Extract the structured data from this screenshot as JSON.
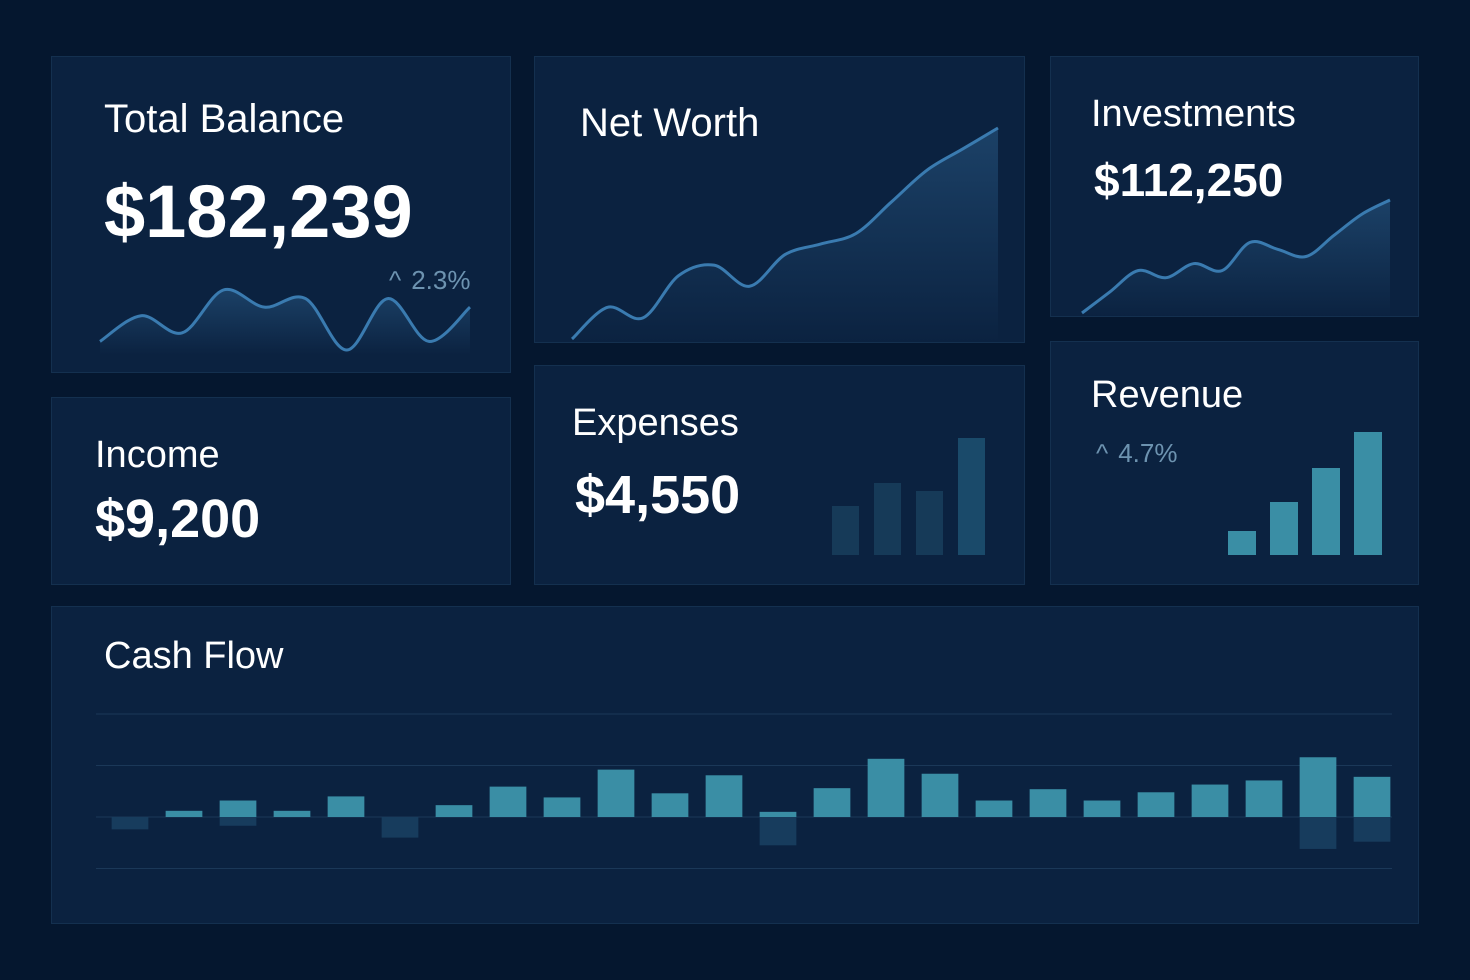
{
  "colors": {
    "background": "#05172f",
    "card": "#0b2240",
    "line": "#3a7bb0",
    "bar_positive": "#3a8ea5",
    "bar_negative": "#173c5d",
    "muted_text": "#6d93b0"
  },
  "total_balance": {
    "title": "Total Balance",
    "value": "$182,239",
    "change_icon": "chevron-up-icon",
    "change": "2.3%"
  },
  "net_worth": {
    "title": "Net Worth"
  },
  "investments": {
    "title": "Investments",
    "value": "$112,250"
  },
  "income": {
    "title": "Income",
    "value": "$9,200"
  },
  "expenses": {
    "title": "Expenses",
    "value": "$4,550"
  },
  "revenue": {
    "title": "Revenue",
    "change_icon": "chevron-up-icon",
    "change": "4.7%"
  },
  "cash_flow": {
    "title": "Cash Flow"
  },
  "chart_data": [
    {
      "type": "line",
      "id": "total-balance-sparkline",
      "values": [
        3,
        6,
        4,
        9,
        7,
        8,
        2,
        8,
        3,
        7
      ]
    },
    {
      "type": "area",
      "id": "net-worth-chart",
      "values": [
        0,
        3,
        2,
        6,
        7,
        5,
        8,
        9,
        10,
        13,
        16,
        18,
        20
      ]
    },
    {
      "type": "area",
      "id": "investments-chart",
      "values": [
        0,
        3,
        6,
        5,
        7,
        6,
        10,
        9,
        8,
        11,
        14,
        16
      ]
    },
    {
      "type": "bar",
      "id": "expenses-chart",
      "values": [
        48,
        70,
        62,
        114
      ]
    },
    {
      "type": "bar",
      "id": "revenue-chart",
      "values": [
        24,
        53,
        86,
        122
      ]
    },
    {
      "type": "bar",
      "id": "cash-flow-chart",
      "ylim": [
        -2,
        3
      ],
      "grid": true,
      "series": [
        {
          "values": [
            -0.24,
            0.12,
            0.32,
            0.12,
            0.4,
            -0.4,
            0.23,
            0.59,
            0.38,
            0.92,
            0.46,
            0.81,
            0.1,
            0.56,
            1.13,
            0.84,
            0.32,
            0.54,
            0.32,
            0.48,
            0.63,
            0.71,
            1.16,
            0.78
          ]
        },
        {
          "values": [
            0,
            0,
            -0.17,
            0,
            0,
            0,
            0,
            0,
            0,
            0,
            0,
            0,
            -0.55,
            0,
            0,
            0,
            0,
            0,
            0,
            0,
            0,
            0,
            -0.62,
            -0.48
          ]
        }
      ]
    }
  ]
}
